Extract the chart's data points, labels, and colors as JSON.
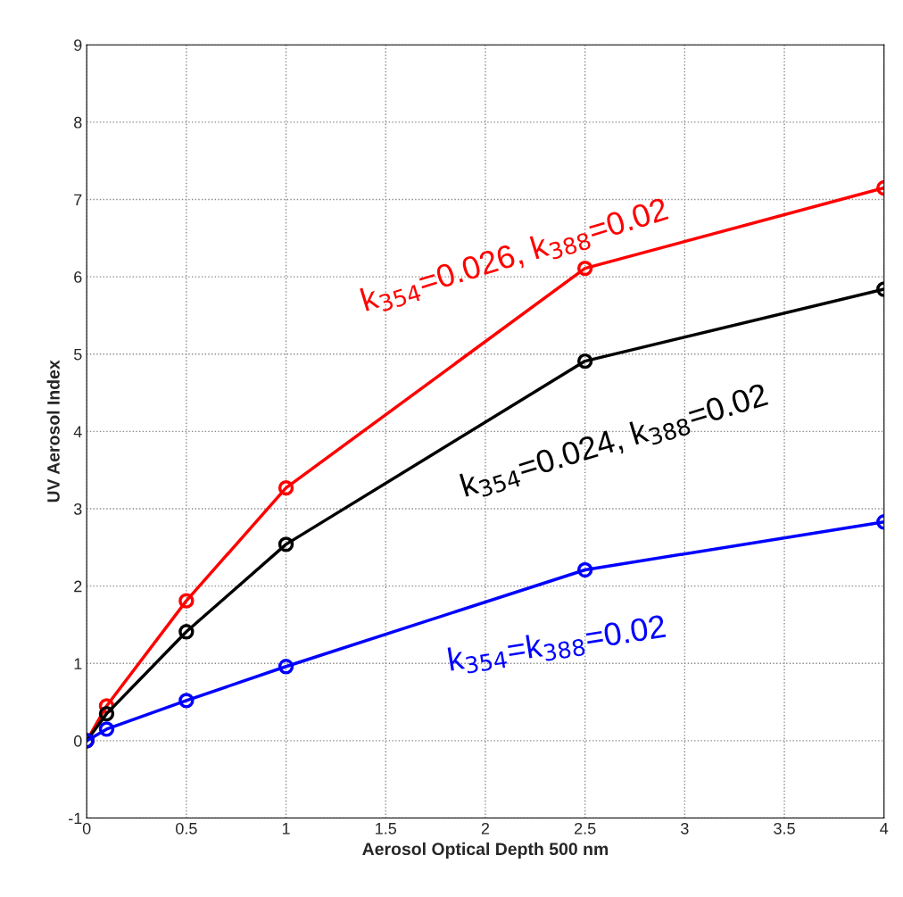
{
  "chart_data": {
    "type": "line",
    "xlabel": "Aerosol Optical Depth 500 nm",
    "ylabel": "UV Aerosol Index",
    "x": [
      0,
      0.1,
      0.5,
      1,
      2.5,
      4
    ],
    "series": [
      {
        "name": "k$_{354}$=0.026, k$_{388}$=0.02",
        "color": "#ff0000",
        "values": [
          0,
          0.45,
          1.81,
          3.27,
          6.11,
          7.15
        ]
      },
      {
        "name": "k$_{354}$=0.024, k$_{388}$=0.02",
        "color": "#000000",
        "values": [
          0,
          0.35,
          1.41,
          2.54,
          4.91,
          5.84
        ]
      },
      {
        "name": "k$_{354}$=k$_{388}$=0.02",
        "color": "#0000ff",
        "values": [
          0,
          0.15,
          0.52,
          0.96,
          2.21,
          2.83
        ]
      }
    ],
    "xlim": [
      0,
      4
    ],
    "ylim": [
      -1,
      9
    ],
    "xticks": [
      0,
      0.5,
      1,
      1.5,
      2,
      2.5,
      3,
      3.5,
      4
    ],
    "yticks": [
      -1,
      0,
      1,
      2,
      3,
      4,
      5,
      6,
      7,
      8,
      9
    ],
    "grid": true,
    "marker": "circle",
    "line_style": "solid",
    "legend": false
  }
}
